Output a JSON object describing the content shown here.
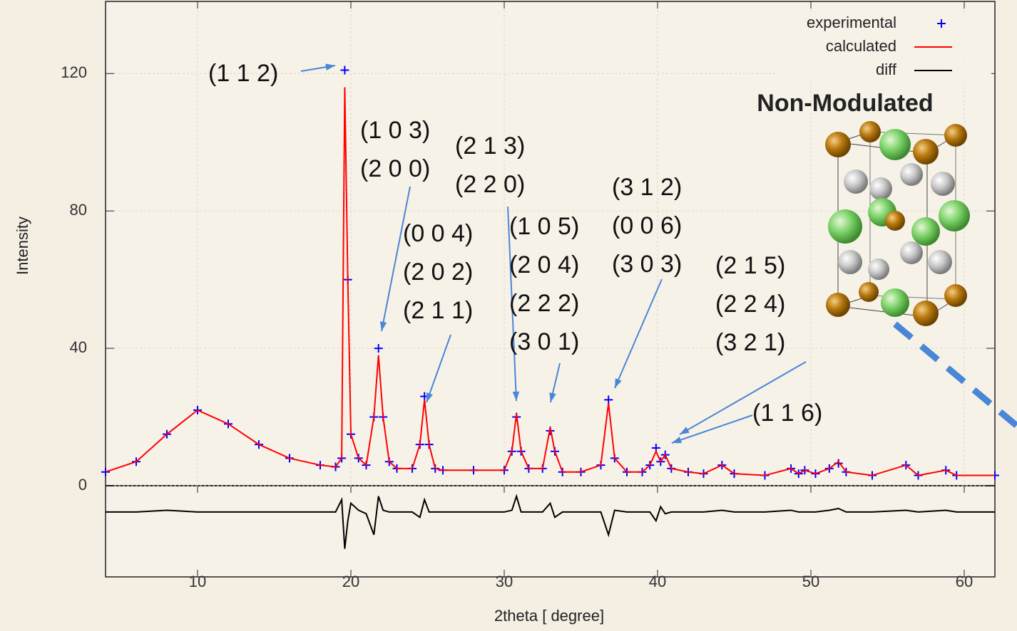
{
  "chart_data": {
    "type": "line",
    "x_label": "2theta [ degree]",
    "y_label": "Intensity",
    "xlim": [
      4,
      62
    ],
    "ylim": [
      0,
      141
    ],
    "y2lim": [
      -20,
      6
    ],
    "xticks": [
      10,
      20,
      30,
      40,
      50,
      60
    ],
    "yticks": [
      0,
      40,
      80,
      120
    ],
    "grid": true,
    "legend": "upper right",
    "x": [
      4,
      6,
      8,
      10,
      12,
      14,
      16,
      18,
      19,
      19.4,
      19.6,
      19.8,
      20,
      20.5,
      21,
      21.5,
      21.8,
      22.1,
      22.5,
      23,
      24,
      24.5,
      24.8,
      25.1,
      25.5,
      26,
      28,
      30,
      30.5,
      30.8,
      31.1,
      31.6,
      32.5,
      33,
      33.3,
      33.8,
      35,
      36.3,
      36.8,
      37.2,
      38,
      39,
      39.5,
      39.9,
      40.2,
      40.5,
      40.9,
      42,
      43,
      44.2,
      45,
      47,
      48.7,
      49.2,
      49.6,
      50.3,
      51.2,
      51.8,
      52.3,
      54,
      56.2,
      57,
      58.8,
      59.5,
      62
    ],
    "series": [
      {
        "name": "experimental",
        "color": "#0000ff",
        "marker": "+",
        "values": [
          4,
          7,
          15,
          22,
          18,
          12,
          8,
          6,
          5.5,
          8,
          121,
          60,
          15,
          8,
          6,
          20,
          40,
          20,
          7,
          5,
          5,
          12,
          26,
          12,
          5,
          4.5,
          4.5,
          4.5,
          10,
          20,
          10,
          5,
          5,
          16,
          10,
          4,
          4,
          6,
          25,
          8,
          4,
          4,
          6,
          11,
          7,
          9,
          5,
          4,
          3.5,
          6,
          3.5,
          3,
          5,
          3.5,
          4.5,
          3.5,
          5,
          6.5,
          4,
          3,
          6,
          3,
          4.5,
          3,
          3
        ]
      },
      {
        "name": "calculated",
        "color": "#ff0000",
        "values": [
          4,
          7,
          15,
          22,
          18,
          12,
          8,
          6,
          5.5,
          8,
          116,
          60,
          15,
          8,
          6,
          20,
          38,
          20,
          7,
          5,
          5,
          12,
          25,
          12,
          5,
          4.5,
          4.5,
          4.5,
          10,
          21,
          10,
          5,
          5,
          17,
          10,
          4,
          4,
          6,
          24,
          8,
          4,
          4,
          6,
          10,
          7,
          9,
          5,
          4,
          3.5,
          6,
          3.5,
          3,
          5,
          3.5,
          4.5,
          3.5,
          5,
          7,
          4,
          3,
          6,
          3,
          4.5,
          3,
          3
        ]
      },
      {
        "name": "diff",
        "color": "#000000",
        "axis": "y2",
        "values": [
          -1.5,
          -1.5,
          -1,
          -1.5,
          -1.5,
          -1.5,
          -1.5,
          -1.5,
          -1.5,
          2,
          -12,
          -4,
          1,
          -1,
          -2,
          -8,
          3,
          -1,
          -1.5,
          -1.5,
          -1.5,
          -3,
          2,
          -1.5,
          -1.5,
          -1.5,
          -1.5,
          -1.5,
          -1,
          3,
          -1.5,
          -1.5,
          -1.5,
          1,
          -3,
          -1.5,
          -1.5,
          -1.5,
          -8,
          -1,
          -1.5,
          -1.5,
          -1.5,
          -4,
          0,
          -2,
          -1.5,
          -1.5,
          -1.5,
          -1,
          -1.5,
          -1.5,
          -1,
          -1.5,
          -1.5,
          -1.5,
          -1,
          -0.5,
          -1.5,
          -1.5,
          -1,
          -1.5,
          -1,
          -1.5,
          -1.5
        ]
      }
    ],
    "inset_label": "Non-Modulated",
    "annotations": [
      {
        "lines": [
          "(1 1 2)"
        ]
      },
      {
        "lines": [
          "(1 0 3)",
          "(2 0 0)"
        ]
      },
      {
        "lines": [
          "(2 1 3)",
          "(2 2 0)"
        ]
      },
      {
        "lines": [
          "(0 0 4)",
          "(2 0 2)",
          "(2 1 1)"
        ]
      },
      {
        "lines": [
          "(1 0 5)",
          "(2 0 4)",
          "(2 2 2)",
          "(3 0 1)"
        ]
      },
      {
        "lines": [
          "(3 1 2)",
          "(0 0 6)",
          "(3 0 3)"
        ]
      },
      {
        "lines": [
          "(2 1 5)",
          "(2 2 4)",
          "(3 2 1)"
        ]
      },
      {
        "lines": [
          "(1 1 6)"
        ]
      }
    ]
  }
}
